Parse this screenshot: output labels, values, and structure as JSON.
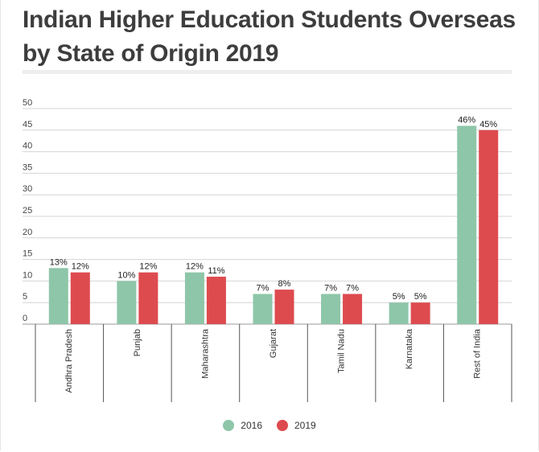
{
  "title": "Indian Higher Education Students Overseas by State of Origin 2019",
  "colors": {
    "2016": "#8ec6a9",
    "2019": "#dd4b4f"
  },
  "chart_data": {
    "type": "bar",
    "title": "Indian Higher Education Students Overseas by State of Origin 2019",
    "xlabel": "",
    "ylabel": "",
    "ylim": [
      0,
      50
    ],
    "yticks": [
      0,
      5,
      10,
      15,
      20,
      25,
      30,
      35,
      40,
      45,
      50
    ],
    "grid": true,
    "legend_position": "bottom",
    "categories": [
      "Andhra Pradesh",
      "Punjab",
      "Maharashtra",
      "Gujarat",
      "Tamil Nadu",
      "Karnataka",
      "Rest of India"
    ],
    "series": [
      {
        "name": "2016",
        "values": [
          13,
          10,
          12,
          7,
          7,
          5,
          46
        ],
        "labels": [
          "13%",
          "10%",
          "12%",
          "7%",
          "7%",
          "5%",
          "46%"
        ]
      },
      {
        "name": "2019",
        "values": [
          12,
          12,
          11,
          8,
          7,
          5,
          45
        ],
        "labels": [
          "12%",
          "12%",
          "11%",
          "8%",
          "7%",
          "5%",
          "45%"
        ]
      }
    ]
  }
}
